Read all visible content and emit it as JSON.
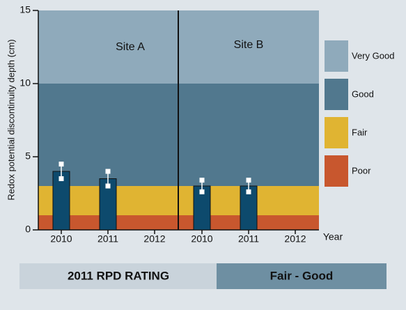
{
  "chart_data": {
    "type": "bar",
    "ylabel": "Redox potential discontinuity depth (cm)",
    "xlabel": "Year",
    "categories": [
      "2010",
      "2011",
      "2012"
    ],
    "panels": [
      {
        "title": "Site A",
        "values": [
          4,
          3.5,
          null
        ],
        "errors": [
          0.5,
          0.5,
          null
        ]
      },
      {
        "title": "Site B",
        "values": [
          3,
          3,
          null
        ],
        "errors": [
          0.4,
          0.4,
          null
        ]
      }
    ],
    "color": "#0d4a6d",
    "ylim": [
      0,
      15
    ],
    "yticks": [
      0,
      5,
      10,
      15
    ],
    "bands": [
      {
        "name": "Very Good",
        "range": [
          10,
          15
        ],
        "color": "#8faabb"
      },
      {
        "name": "Good",
        "range": [
          3,
          10
        ],
        "color": "#51788e"
      },
      {
        "name": "Fair",
        "range": [
          1,
          3
        ],
        "color": "#e0b432"
      },
      {
        "name": "Poor",
        "range": [
          0,
          1
        ],
        "color": "#c8572e"
      }
    ]
  },
  "rating": {
    "label": "2011 RPD RATING",
    "value": "Fair - Good"
  }
}
